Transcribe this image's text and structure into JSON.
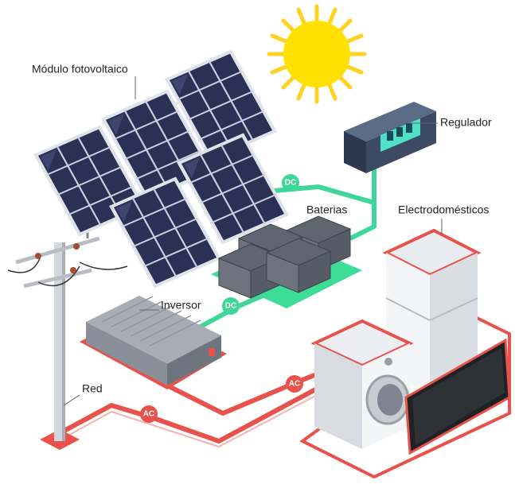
{
  "components": {
    "panels": "Módulo fotovoltaico",
    "regulator": "Regulador",
    "batteries": "Baterias",
    "appliances": "Electrodomésticos",
    "inverter": "Inversor",
    "grid": "Red"
  },
  "connection_badges": [
    "DC",
    "DC",
    "AC",
    "AC"
  ]
}
